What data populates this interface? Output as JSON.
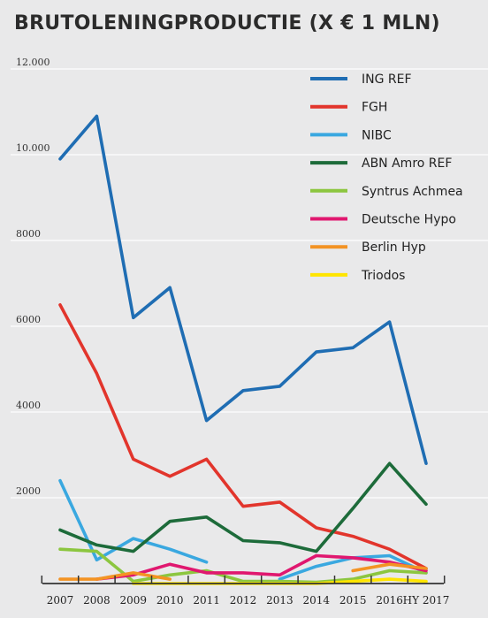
{
  "title": "BRUTOLENINGPRODUCTIE (X € 1 MLN)",
  "chart_data": {
    "type": "line",
    "title": "BRUTOLENINGPRODUCTIE (X € 1 MLN)",
    "xlabel": "",
    "ylabel": "",
    "x": [
      "2007",
      "2008",
      "2009",
      "2010",
      "2011",
      "2012",
      "2013",
      "2014",
      "2015",
      "2016",
      "HY 2017"
    ],
    "y_ticks": [
      2000,
      4000,
      6000,
      8000,
      10000,
      12000
    ],
    "y_tick_labels": [
      "2000",
      "4000",
      "6000",
      "8000",
      "10.000",
      "12.000"
    ],
    "ylim": [
      0,
      12500
    ],
    "grid": true,
    "legend_position": "top-right",
    "series": [
      {
        "name": "ING REF",
        "color": "#1f6db3",
        "values": [
          9900,
          10900,
          6200,
          6900,
          3800,
          4500,
          4600,
          5400,
          5500,
          6100,
          2800
        ]
      },
      {
        "name": "FGH",
        "color": "#e2352c",
        "values": [
          6500,
          4900,
          2900,
          2500,
          2900,
          1800,
          1900,
          1300,
          1100,
          800,
          350
        ]
      },
      {
        "name": "NIBC",
        "color": "#3aa8e0",
        "values": [
          2400,
          550,
          1050,
          800,
          500,
          null,
          100,
          400,
          600,
          650,
          250
        ]
      },
      {
        "name": "ABN Amro REF",
        "color": "#1d6b3a",
        "values": [
          1250,
          900,
          750,
          1450,
          1550,
          1000,
          950,
          750,
          1750,
          2800,
          1850
        ]
      },
      {
        "name": "Syntrus Achmea",
        "color": "#8cc63f",
        "values": [
          800,
          750,
          50,
          200,
          300,
          50,
          50,
          30,
          100,
          300,
          250
        ]
      },
      {
        "name": "Deutsche Hypo",
        "color": "#e0176f",
        "values": [
          null,
          100,
          200,
          450,
          250,
          250,
          200,
          650,
          600,
          500,
          300
        ]
      },
      {
        "name": "Berlin Hyp",
        "color": "#f39323",
        "values": [
          100,
          100,
          250,
          100,
          null,
          null,
          null,
          null,
          300,
          450,
          350
        ]
      },
      {
        "name": "Triodos",
        "color": "#ffe500",
        "values": [
          null,
          null,
          0,
          0,
          0,
          0,
          0,
          0,
          50,
          100,
          50
        ]
      }
    ]
  }
}
